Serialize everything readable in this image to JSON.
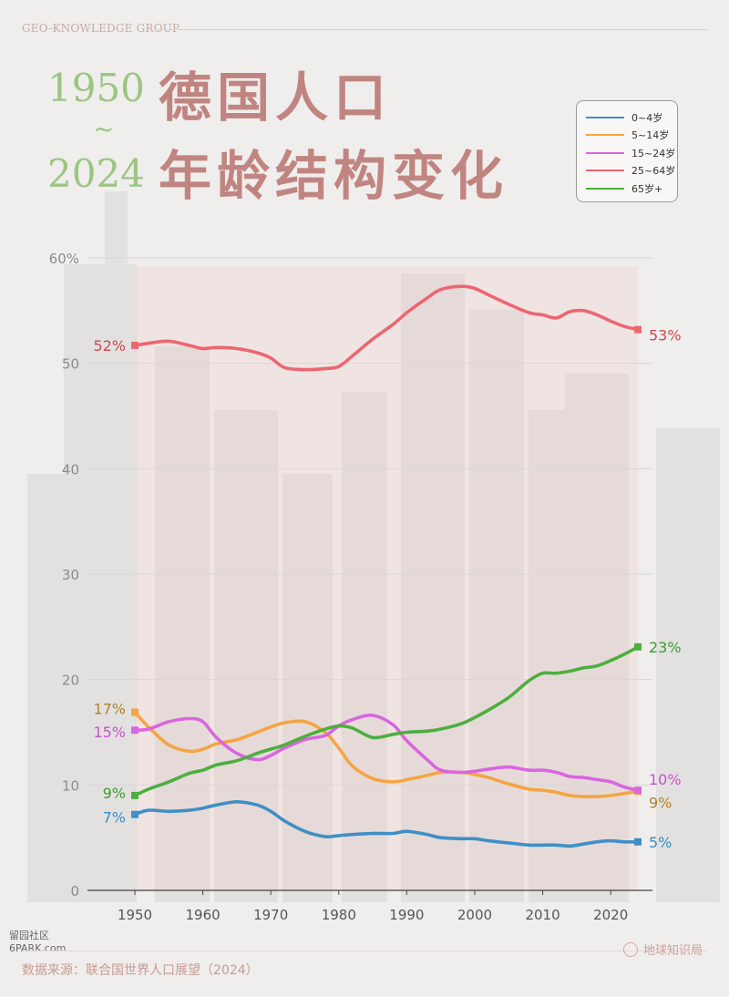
{
  "header": {
    "brand": "GEO-KNOWLEDGE GROUP",
    "year_start": "1950",
    "year_sep": "~",
    "year_end": "2024",
    "title_line1": "德国人口",
    "title_line2": "年龄结构变化"
  },
  "footer": {
    "source": "数据来源：联合国世界人口展望（2024）",
    "badge": "地球知识局",
    "watermark_line1": "留园社区",
    "watermark_line2": "6PARK.com"
  },
  "chart_data": {
    "type": "line",
    "title": "",
    "xlabel": "",
    "ylabel": "",
    "xlim": [
      1950,
      2024
    ],
    "ylim": [
      0,
      60
    ],
    "x_ticks": [
      "1950",
      "1960",
      "1970",
      "1980",
      "1990",
      "2000",
      "2010",
      "2020"
    ],
    "y_ticks": [
      "0",
      "10",
      "20",
      "30",
      "40",
      "50",
      "60%"
    ],
    "grid": "horizontal",
    "legend_position": "top-right",
    "x": [
      1950,
      1952,
      1955,
      1958,
      1960,
      1962,
      1965,
      1968,
      1970,
      1972,
      1975,
      1978,
      1980,
      1982,
      1985,
      1988,
      1990,
      1993,
      1995,
      1998,
      2000,
      2002,
      2005,
      2008,
      2010,
      2012,
      2014,
      2016,
      2018,
      2020,
      2022,
      2024
    ],
    "series": [
      {
        "name": "0~4岁",
        "color": "#3f8fc6",
        "values": [
          7.2,
          7.6,
          7.5,
          7.6,
          7.8,
          8.1,
          8.4,
          8.1,
          7.5,
          6.6,
          5.6,
          5.1,
          5.2,
          5.3,
          5.4,
          5.4,
          5.6,
          5.3,
          5.0,
          4.9,
          4.9,
          4.7,
          4.5,
          4.3,
          4.3,
          4.3,
          4.2,
          4.4,
          4.6,
          4.7,
          4.6,
          4.6
        ],
        "start_label": "7%",
        "end_label": "5%"
      },
      {
        "name": "5~14岁",
        "color": "#f5a443",
        "values": [
          16.9,
          15.5,
          13.8,
          13.2,
          13.4,
          13.9,
          14.3,
          15.0,
          15.5,
          15.9,
          16.0,
          15.0,
          13.5,
          11.8,
          10.6,
          10.3,
          10.5,
          10.9,
          11.2,
          11.2,
          11.0,
          10.7,
          10.1,
          9.6,
          9.5,
          9.3,
          9.0,
          8.9,
          8.9,
          9.0,
          9.2,
          9.4
        ],
        "start_label": "17%",
        "end_label": "9%"
      },
      {
        "name": "15~24岁",
        "color": "#d966df",
        "values": [
          15.2,
          15.3,
          16.0,
          16.3,
          16.0,
          14.5,
          13.0,
          12.4,
          12.8,
          13.5,
          14.3,
          14.7,
          15.6,
          16.2,
          16.6,
          15.7,
          14.2,
          12.4,
          11.4,
          11.2,
          11.3,
          11.5,
          11.7,
          11.4,
          11.4,
          11.2,
          10.8,
          10.7,
          10.5,
          10.3,
          9.8,
          9.5
        ],
        "start_label": "15%",
        "end_label": "10%"
      },
      {
        "name": "25~64岁",
        "color": "#ec6670",
        "values": [
          51.7,
          51.9,
          52.1,
          51.7,
          51.4,
          51.5,
          51.4,
          51.0,
          50.5,
          49.6,
          49.4,
          49.5,
          49.7,
          50.7,
          52.3,
          53.7,
          54.8,
          56.2,
          57.0,
          57.3,
          57.1,
          56.5,
          55.6,
          54.8,
          54.6,
          54.3,
          54.9,
          55.0,
          54.6,
          54.0,
          53.5,
          53.2
        ],
        "start_label": "52%",
        "end_label": "53%"
      },
      {
        "name": "65岁+",
        "color": "#4caf3e",
        "values": [
          9.0,
          9.6,
          10.3,
          11.1,
          11.4,
          11.9,
          12.3,
          13.0,
          13.4,
          13.8,
          14.6,
          15.3,
          15.6,
          15.4,
          14.5,
          14.8,
          15.0,
          15.1,
          15.3,
          15.8,
          16.4,
          17.1,
          18.3,
          19.9,
          20.6,
          20.6,
          20.8,
          21.1,
          21.3,
          21.8,
          22.4,
          23.1
        ],
        "start_label": "9%",
        "end_label": "23%"
      }
    ]
  }
}
